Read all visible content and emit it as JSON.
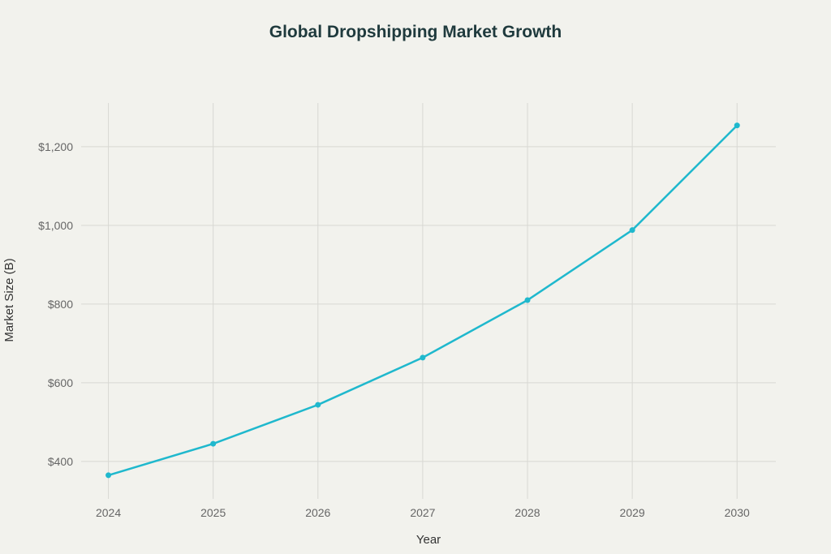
{
  "chart_data": {
    "type": "line",
    "title": "Global Dropshipping Market Growth",
    "xlabel": "Year",
    "ylabel": "Market Size (B)",
    "x": [
      2024,
      2025,
      2026,
      2027,
      2028,
      2029,
      2030
    ],
    "x_tick_labels": [
      "2024",
      "2025",
      "2026",
      "2027",
      "2028",
      "2029",
      "2030"
    ],
    "series": [
      {
        "values": [
          365,
          445,
          544,
          664,
          810,
          988,
          1254
        ],
        "color": "#1fb8cd"
      }
    ],
    "yticks": [
      400,
      600,
      800,
      1000,
      1200
    ],
    "ytick_labels": [
      "$400",
      "$600",
      "$800",
      "$1,000",
      "$1,200"
    ],
    "ylim": [
      305,
      1311
    ],
    "xlim": [
      2023.74,
      2030.37
    ],
    "grid": true,
    "legend": "none"
  }
}
